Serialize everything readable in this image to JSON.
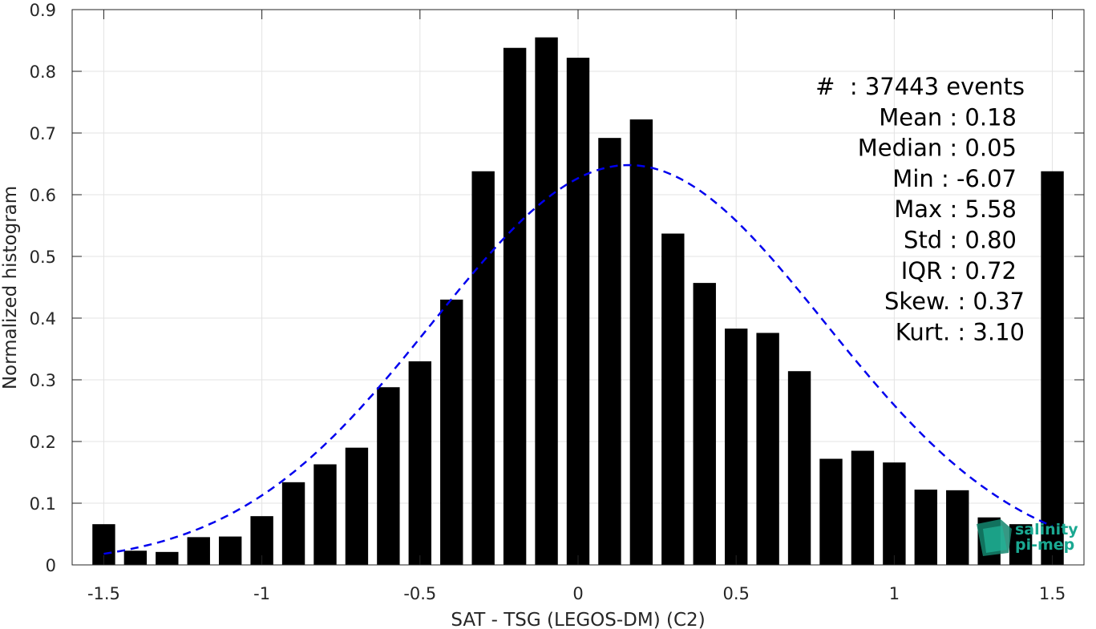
{
  "chart_data": {
    "type": "bar",
    "xlabel": "SAT - TSG (LEGOS-DM) (C2)",
    "ylabel": "Normalized histogram",
    "xlim": [
      -1.6,
      1.6
    ],
    "ylim": [
      0,
      0.9
    ],
    "xticks": [
      -1.5,
      -1,
      -0.5,
      0,
      0.5,
      1,
      1.5
    ],
    "xtick_labels": [
      "-1.5",
      "-1",
      "-0.5",
      "0",
      "0.5",
      "1",
      "1.5"
    ],
    "yticks": [
      0,
      0.1,
      0.2,
      0.3,
      0.4,
      0.5,
      0.6,
      0.7,
      0.8,
      0.9
    ],
    "ytick_labels": [
      "0",
      "0.1",
      "0.2",
      "0.3",
      "0.4",
      "0.5",
      "0.6",
      "0.7",
      "0.8",
      "0.9"
    ],
    "grid": true,
    "bar_color": "#000000",
    "bins": [
      -1.5,
      -1.4,
      -1.3,
      -1.2,
      -1.1,
      -1.0,
      -0.9,
      -0.8,
      -0.7,
      -0.6,
      -0.5,
      -0.4,
      -0.3,
      -0.2,
      -0.1,
      0.0,
      0.1,
      0.2,
      0.3,
      0.4,
      0.5,
      0.6,
      0.7,
      0.8,
      0.9,
      1.0,
      1.1,
      1.2,
      1.3,
      1.4,
      1.5
    ],
    "values": [
      0.066,
      0.023,
      0.021,
      0.045,
      0.046,
      0.079,
      0.134,
      0.163,
      0.19,
      0.288,
      0.33,
      0.43,
      0.638,
      0.838,
      0.855,
      0.822,
      0.692,
      0.722,
      0.537,
      0.457,
      0.383,
      0.376,
      0.314,
      0.172,
      0.185,
      0.166,
      0.122,
      0.121,
      0.077,
      0.066,
      0.638
    ],
    "fit_curve": {
      "type": "gaussian",
      "mean": 0.16,
      "std": 0.62,
      "peak": 0.648,
      "x_range": [
        -1.5,
        1.5
      ],
      "color": "#0000ee",
      "style": "dashed"
    },
    "stats": [
      "#  : 37443 events",
      "Mean : 0.18",
      "Median : 0.05",
      "Min : -6.07",
      "Max : 5.58",
      "Std : 0.80",
      "IQR : 0.72",
      "Skew. : 0.37",
      "Kurt. : 3.10"
    ]
  },
  "logo": {
    "line1": "salinity",
    "line2": "pi-mep",
    "color": "#1aa891"
  }
}
